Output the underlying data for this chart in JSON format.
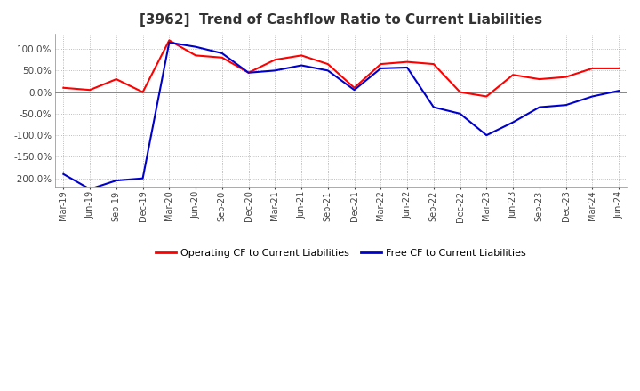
{
  "title": "[3962]  Trend of Cashflow Ratio to Current Liabilities",
  "x_labels": [
    "Mar-19",
    "Jun-19",
    "Sep-19",
    "Dec-19",
    "Mar-20",
    "Jun-20",
    "Sep-20",
    "Dec-20",
    "Mar-21",
    "Jun-21",
    "Sep-21",
    "Dec-21",
    "Mar-22",
    "Jun-22",
    "Sep-22",
    "Dec-22",
    "Mar-23",
    "Jun-23",
    "Sep-23",
    "Dec-23",
    "Mar-24",
    "Jun-24"
  ],
  "operating_cf": [
    10,
    5,
    30,
    0,
    120,
    85,
    80,
    45,
    75,
    85,
    65,
    10,
    65,
    70,
    65,
    0,
    -10,
    40,
    30,
    35,
    55,
    55
  ],
  "free_cf": [
    -190,
    -225,
    -205,
    -200,
    115,
    105,
    90,
    45,
    50,
    62,
    50,
    5,
    55,
    57,
    -35,
    -50,
    -100,
    -70,
    -35,
    -30,
    -10,
    3
  ],
  "ylim": [
    -220,
    135
  ],
  "yticks": [
    100,
    50,
    0,
    -50,
    -100,
    -150,
    -200
  ],
  "operating_color": "#ff0000",
  "free_color": "#0000cc",
  "background_color": "#ffffff",
  "grid_color": "#aaaaaa",
  "title_fontsize": 11,
  "legend_operating": "Operating CF to Current Liabilities",
  "legend_free": "Free CF to Current Liabilities"
}
